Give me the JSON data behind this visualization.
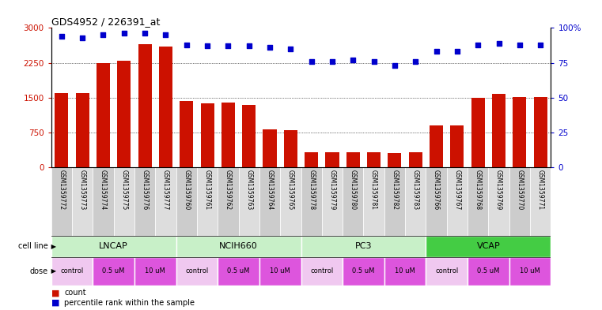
{
  "title": "GDS4952 / 226391_at",
  "samples": [
    "GSM1359772",
    "GSM1359773",
    "GSM1359774",
    "GSM1359775",
    "GSM1359776",
    "GSM1359777",
    "GSM1359760",
    "GSM1359761",
    "GSM1359762",
    "GSM1359763",
    "GSM1359764",
    "GSM1359765",
    "GSM1359778",
    "GSM1359779",
    "GSM1359780",
    "GSM1359781",
    "GSM1359782",
    "GSM1359783",
    "GSM1359766",
    "GSM1359767",
    "GSM1359768",
    "GSM1359769",
    "GSM1359770",
    "GSM1359771"
  ],
  "counts": [
    1600,
    1600,
    2250,
    2300,
    2650,
    2600,
    1430,
    1380,
    1400,
    1350,
    820,
    800,
    320,
    330,
    330,
    320,
    310,
    330,
    900,
    900,
    1500,
    1580,
    1510,
    1520
  ],
  "percentiles": [
    94,
    93,
    95,
    96,
    96,
    95,
    88,
    87,
    87,
    87,
    86,
    85,
    76,
    76,
    77,
    76,
    73,
    76,
    83,
    83,
    88,
    89,
    88,
    88
  ],
  "bar_color": "#cc1100",
  "dot_color": "#0000cc",
  "ylim_left": [
    0,
    3000
  ],
  "ylim_right": [
    0,
    100
  ],
  "yticks_left": [
    0,
    750,
    1500,
    2250,
    3000
  ],
  "yticks_right": [
    0,
    25,
    50,
    75,
    100
  ],
  "grid_lines": [
    750,
    1500,
    2250
  ],
  "cell_groups": [
    {
      "name": "LNCAP",
      "s": 0,
      "e": 6,
      "color": "#c8f0c8"
    },
    {
      "name": "NCIH660",
      "s": 6,
      "e": 12,
      "color": "#c8f0c8"
    },
    {
      "name": "PC3",
      "s": 12,
      "e": 18,
      "color": "#c8f0c8"
    },
    {
      "name": "VCAP",
      "s": 18,
      "e": 24,
      "color": "#44cc44"
    }
  ],
  "dose_blocks": [
    {
      "label": "control",
      "s": 0,
      "e": 2,
      "color": "#f0c8f0"
    },
    {
      "label": "0.5 uM",
      "s": 2,
      "e": 4,
      "color": "#dd55dd"
    },
    {
      "label": "10 uM",
      "s": 4,
      "e": 6,
      "color": "#dd55dd"
    },
    {
      "label": "control",
      "s": 6,
      "e": 8,
      "color": "#f0c8f0"
    },
    {
      "label": "0.5 uM",
      "s": 8,
      "e": 10,
      "color": "#dd55dd"
    },
    {
      "label": "10 uM",
      "s": 10,
      "e": 12,
      "color": "#dd55dd"
    },
    {
      "label": "control",
      "s": 12,
      "e": 14,
      "color": "#f0c8f0"
    },
    {
      "label": "0.5 uM",
      "s": 14,
      "e": 16,
      "color": "#dd55dd"
    },
    {
      "label": "10 uM",
      "s": 16,
      "e": 18,
      "color": "#dd55dd"
    },
    {
      "label": "control",
      "s": 18,
      "e": 20,
      "color": "#f0c8f0"
    },
    {
      "label": "0.5 uM",
      "s": 20,
      "e": 22,
      "color": "#dd55dd"
    },
    {
      "label": "10 uM",
      "s": 22,
      "e": 24,
      "color": "#dd55dd"
    }
  ]
}
